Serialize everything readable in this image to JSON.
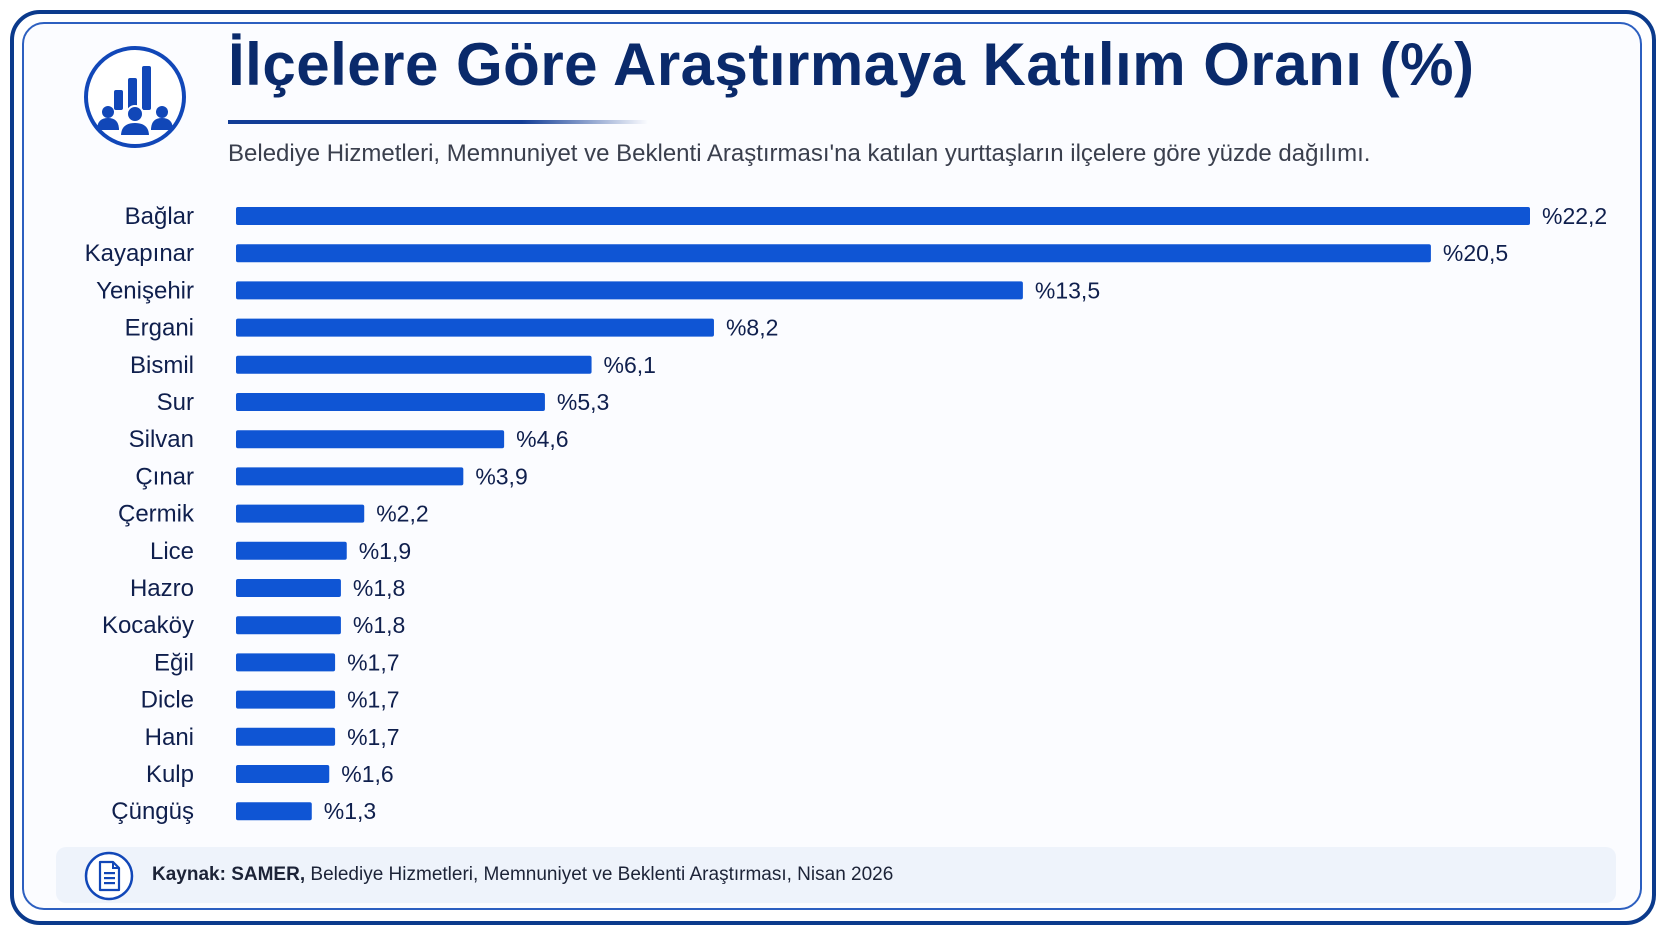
{
  "header": {
    "title": "İlçelere Göre Araştırmaya Katılım Oranı (%)",
    "subtitle": "Belediye Hizmetleri, Memnuniyet ve Beklenti Araştırması'na katılan yurttaşların ilçelere göre yüzde dağılımı.",
    "icon": "bar-chart-people-icon"
  },
  "chart_data": {
    "type": "bar",
    "orientation": "horizontal",
    "categories": [
      "Bağlar",
      "Kayapınar",
      "Yenişehir",
      "Ergani",
      "Bismil",
      "Sur",
      "Silvan",
      "Çınar",
      "Çermik",
      "Lice",
      "Hazro",
      "Kocaköy",
      "Eğil",
      "Dicle",
      "Hani",
      "Kulp",
      "Çüngüş"
    ],
    "values": [
      22.2,
      20.5,
      13.5,
      8.2,
      6.1,
      5.3,
      4.6,
      3.9,
      2.2,
      1.9,
      1.8,
      1.8,
      1.7,
      1.7,
      1.7,
      1.6,
      1.3
    ],
    "value_labels": [
      "%22,2",
      "%20,5",
      "%13,5",
      "%8,2",
      "%6,1",
      "%5,3",
      "%4,6",
      "%3,9",
      "%2,2",
      "%1,9",
      "%1,8",
      "%1,8",
      "%1,7",
      "%1,7",
      "%1,7",
      "%1,6",
      "%1,3"
    ],
    "xlim": [
      0,
      22.2
    ],
    "grid": false,
    "bar_color": "#0f55d4"
  },
  "footer": {
    "source_label": "Kaynak:",
    "source_org": "SAMER,",
    "source_text": "Belediye Hizmetleri, Memnuniyet ve Beklenti Araştırması, Nisan 2026",
    "icon": "document-icon"
  }
}
